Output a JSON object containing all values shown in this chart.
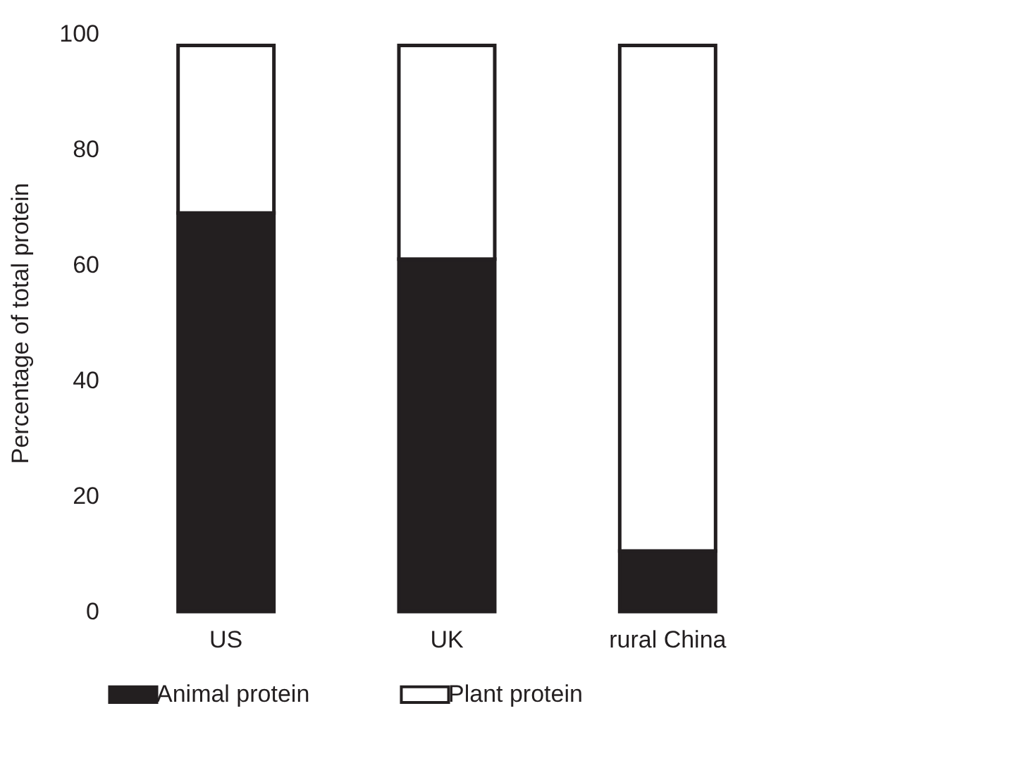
{
  "chart_data": {
    "type": "bar",
    "stacked": true,
    "ylabel": "Percentage of total protein",
    "categories": [
      "US",
      "UK",
      "rural China"
    ],
    "series": [
      {
        "name": "Animal protein",
        "color": "#231f20",
        "values": [
          69,
          61,
          10.5
        ]
      },
      {
        "name": "Plant protein",
        "color": "#ffffff",
        "values": [
          29,
          37,
          87.5
        ]
      }
    ],
    "ylim": [
      0,
      100
    ],
    "yticks": [
      0,
      20,
      40,
      60,
      80,
      100
    ],
    "grid": false,
    "legend": "bottom"
  }
}
